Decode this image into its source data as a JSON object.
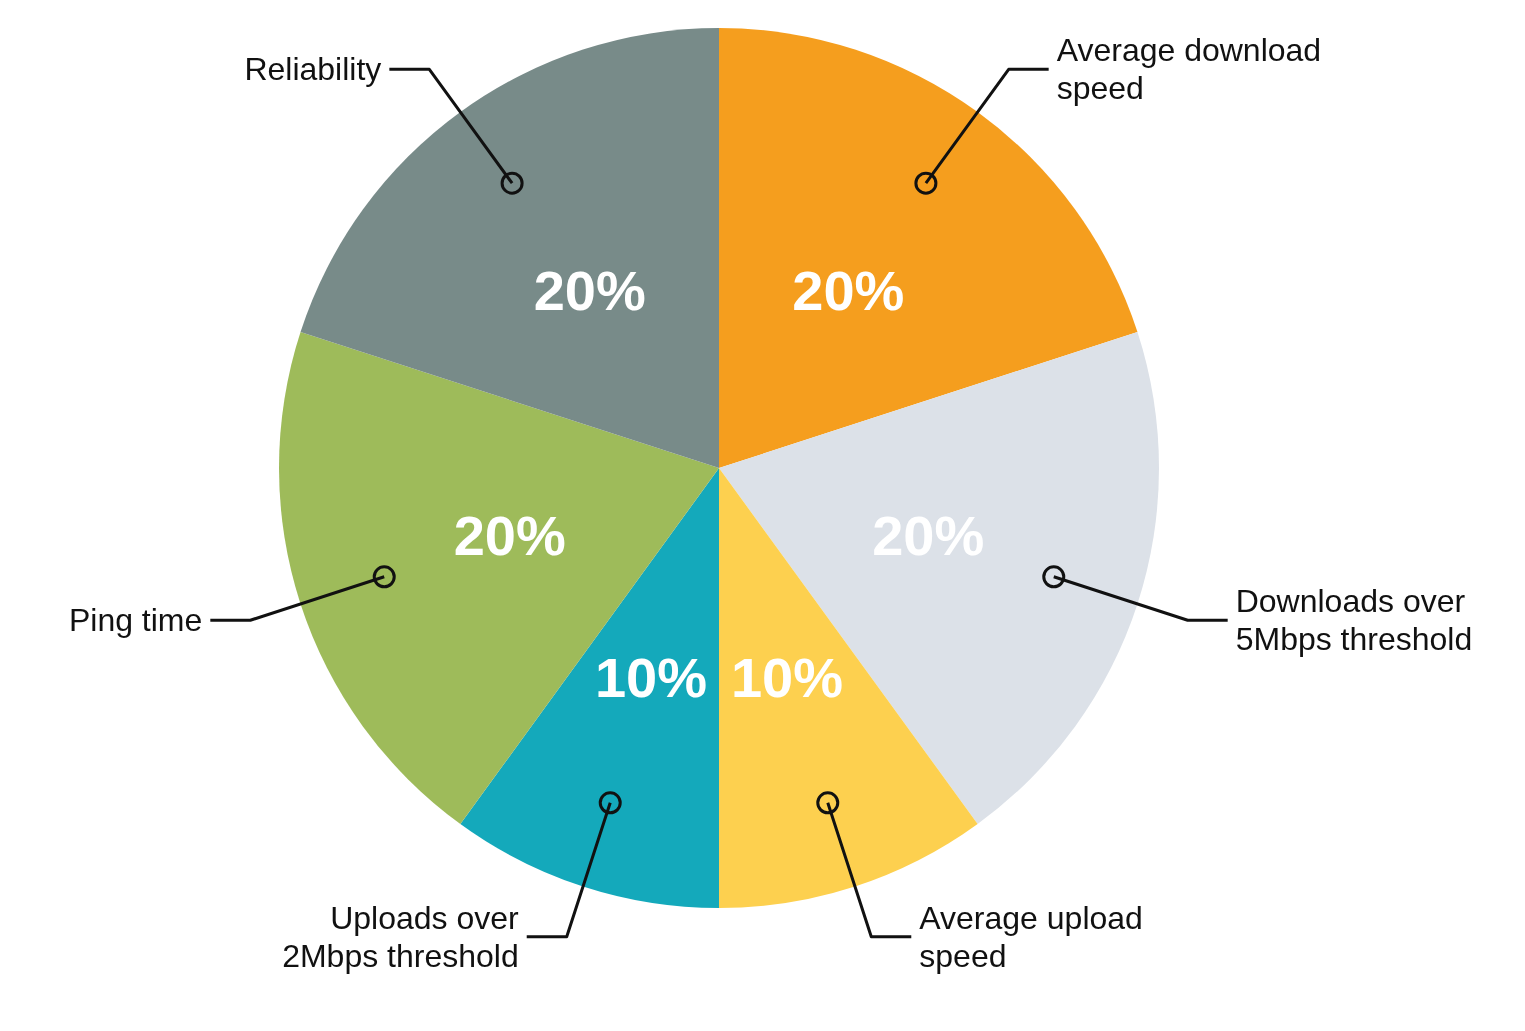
{
  "chart_data": {
    "type": "pie",
    "categories": [
      "Average download speed",
      "Downloads over 5Mbps threshold",
      "Average upload speed",
      "Uploads over 2Mbps threshold",
      "Ping time",
      "Reliability"
    ],
    "values": [
      20,
      20,
      10,
      10,
      20,
      20
    ],
    "value_labels": [
      "20%",
      "20%",
      "10%",
      "10%",
      "20%",
      "20%"
    ],
    "colors": [
      "#f59e1e",
      "#dce1e8",
      "#fdd04f",
      "#14a9bb",
      "#9ebb5a",
      "#788b89"
    ]
  }
}
